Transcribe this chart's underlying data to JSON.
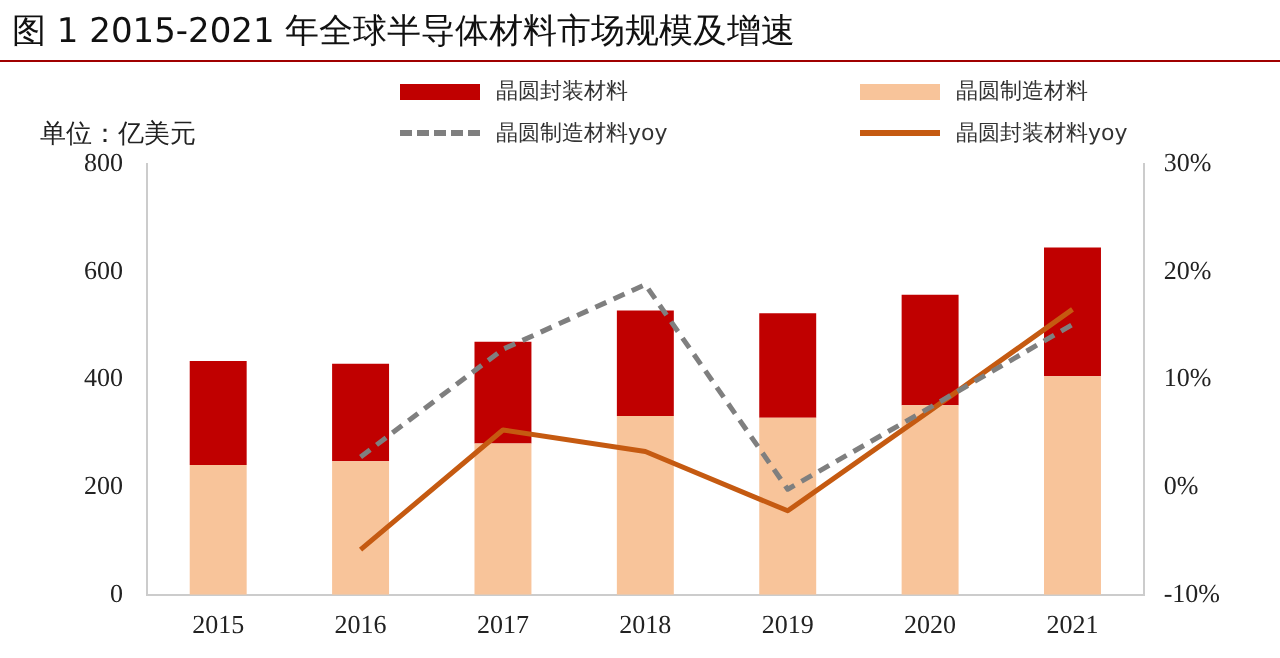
{
  "chart_data": {
    "type": "bar",
    "title": "图 1 2015-2021 年全球半导体材料市场规模及增速",
    "ylabel": "单位：亿美元",
    "categories": [
      "2015",
      "2016",
      "2017",
      "2018",
      "2019",
      "2020",
      "2021"
    ],
    "stacked": true,
    "legend": "top",
    "grid": false,
    "marker": "none",
    "series": [
      {
        "name": "晶圆制造材料",
        "color": "#f8c49a",
        "values": [
          241,
          248,
          281,
          332,
          329,
          352,
          406
        ]
      },
      {
        "name": "晶圆封装材料",
        "color": "#c00000",
        "values": [
          193,
          181,
          189,
          196,
          194,
          205,
          239
        ]
      },
      {
        "name": "晶圆制造材料yoy",
        "type": "line",
        "axis": "y2",
        "line_style": "dashed",
        "color": "#7f7f7f",
        "values": [
          null,
          2.8,
          12.8,
          18.8,
          -0.2,
          7.4,
          15.1
        ]
      },
      {
        "name": "晶圆封装材料yoy",
        "type": "line",
        "axis": "y2",
        "line_style": "solid",
        "color": "#c55a11",
        "values": [
          null,
          -5.8,
          5.3,
          3.3,
          -2.2,
          7.1,
          16.5
        ]
      }
    ],
    "ylim": [
      0,
      800
    ],
    "yticks": [
      0,
      200,
      400,
      600,
      800
    ],
    "y2lim": [
      -10,
      30
    ],
    "y2ticks": [
      {
        "value": -10,
        "label": "-10%"
      },
      {
        "value": 0,
        "label": "0%"
      },
      {
        "value": 10,
        "label": "10%"
      },
      {
        "value": 20,
        "label": "20%"
      },
      {
        "value": 30,
        "label": "30%"
      }
    ]
  }
}
